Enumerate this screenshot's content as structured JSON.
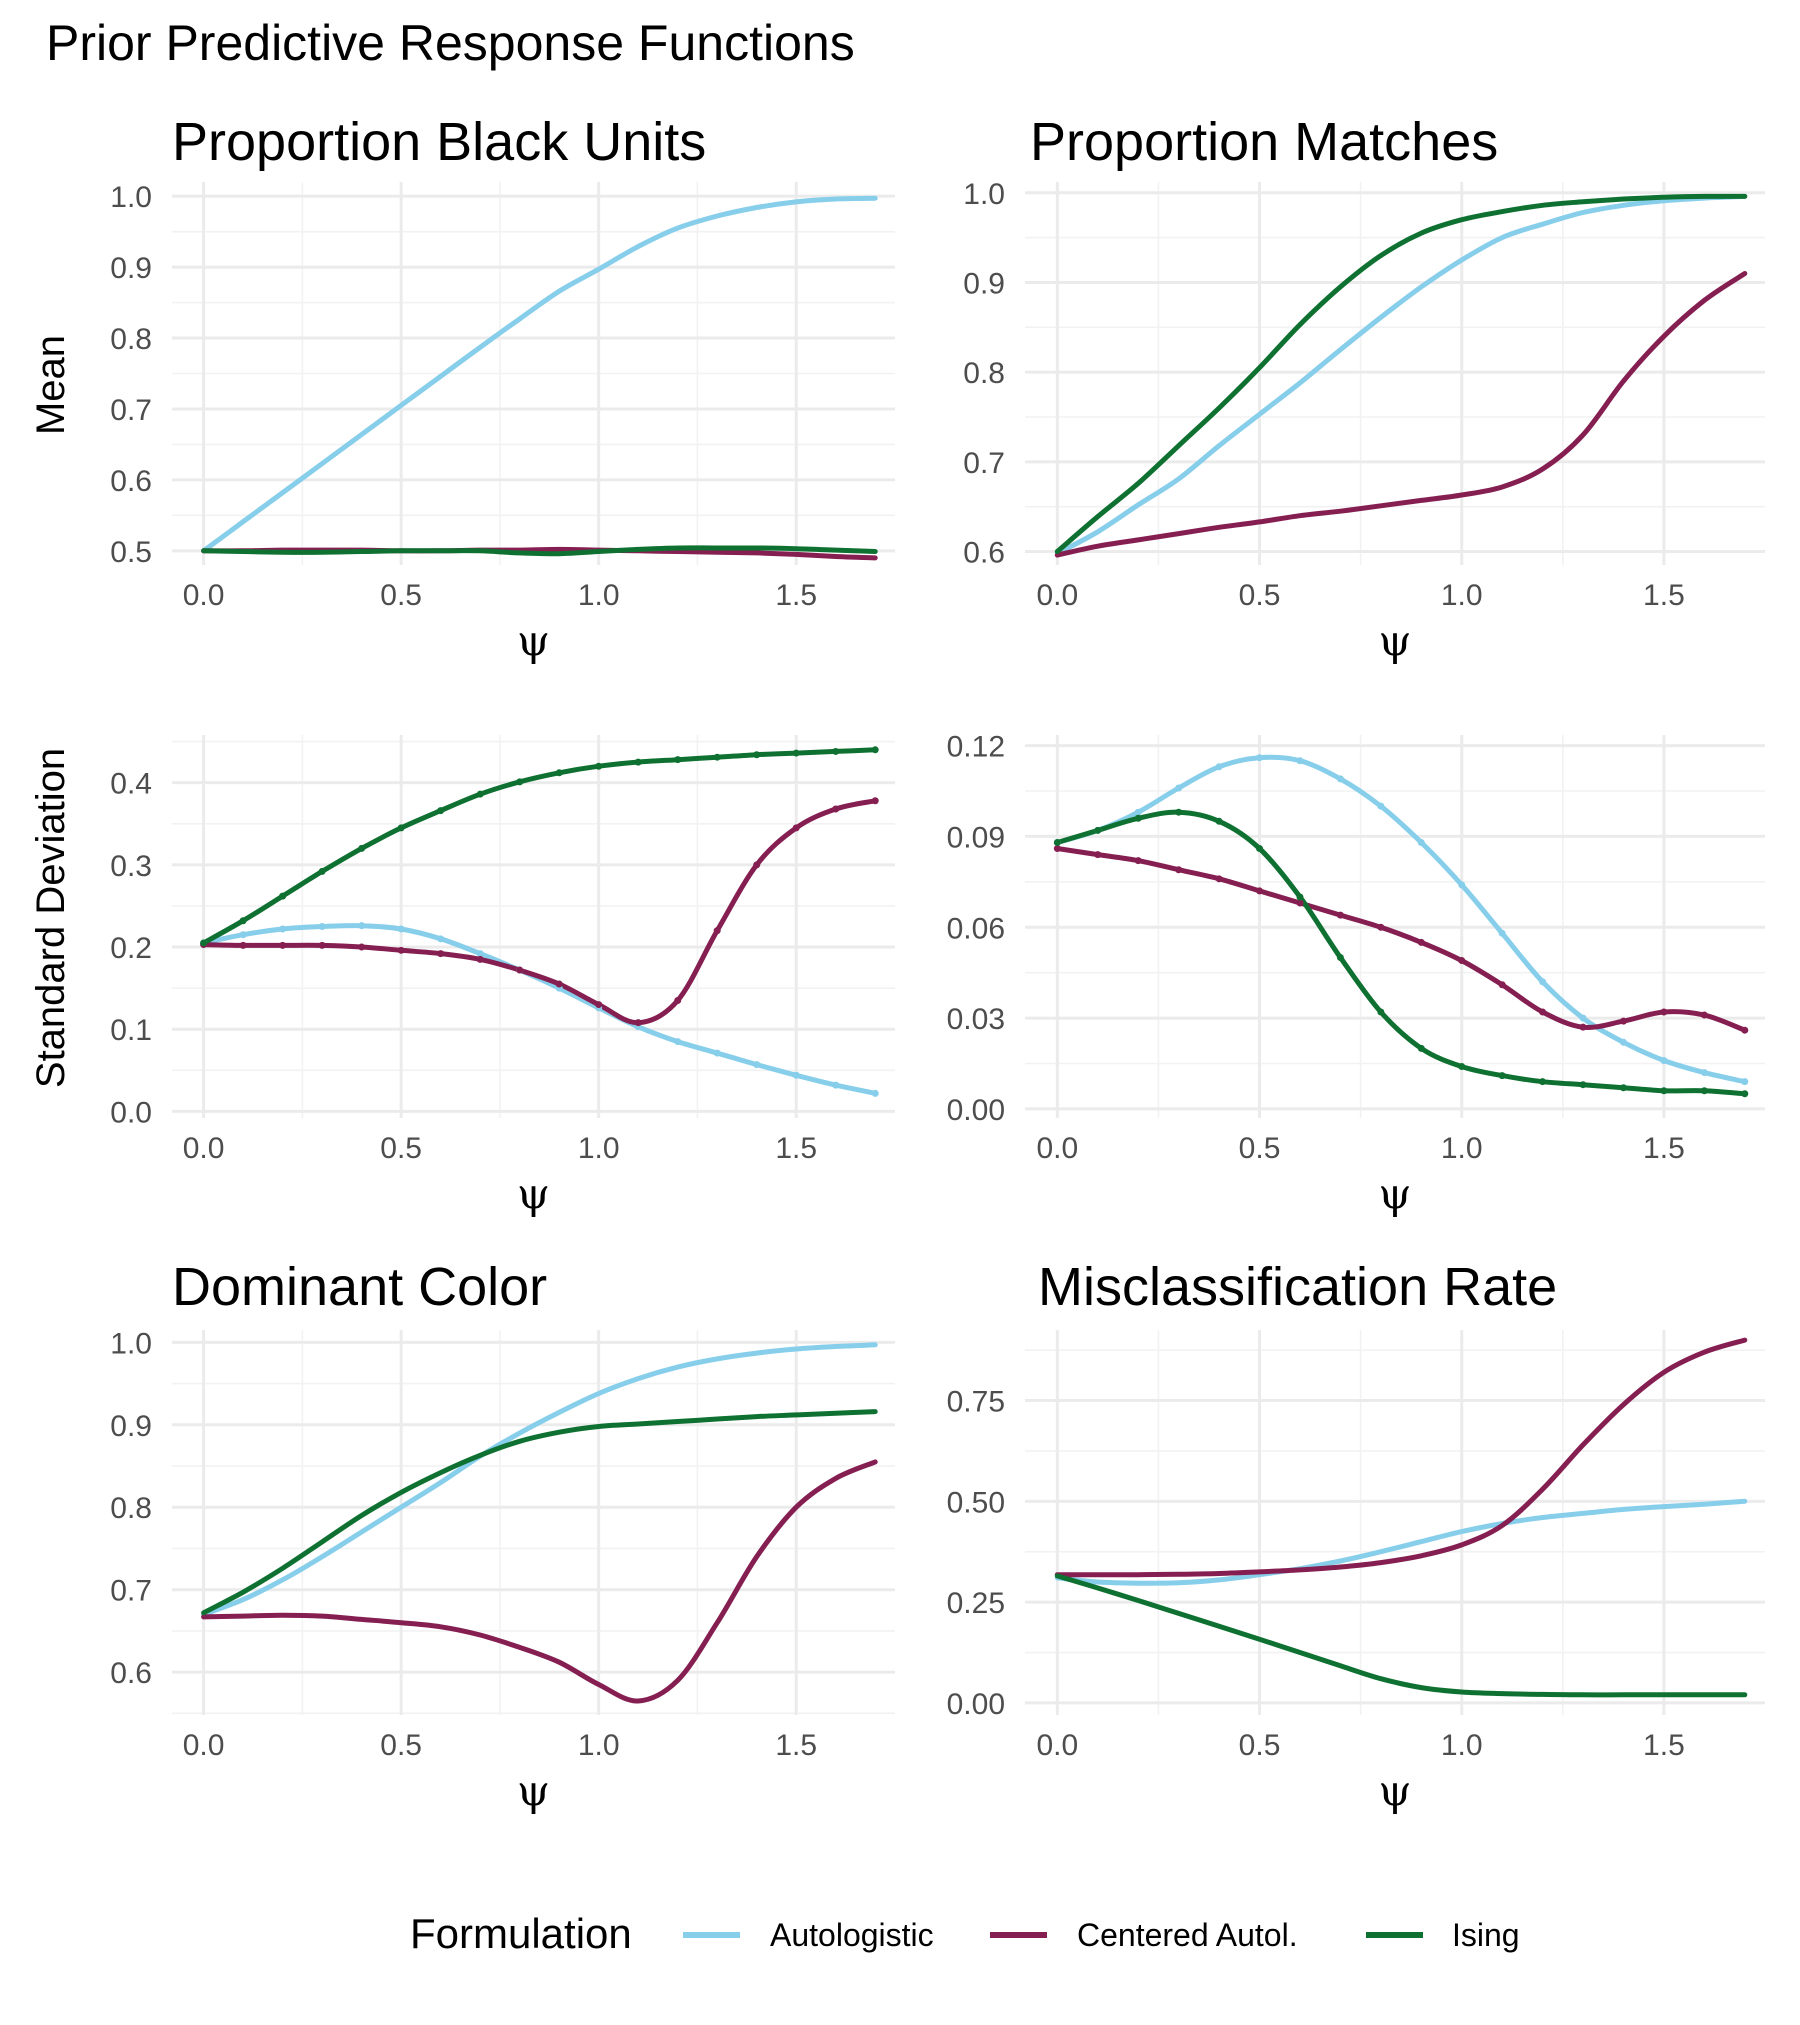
{
  "title": "Prior Predictive Response Functions",
  "colors": {
    "Autologistic": "#87CEEB",
    "Centered Autol.": "#861F51",
    "Ising": "#0F7131"
  },
  "legend": {
    "title": "Formulation",
    "items": [
      "Autologistic",
      "Centered Autol.",
      "Ising"
    ]
  },
  "chart_data": [
    {
      "type": "line",
      "title": "Proportion Black Units",
      "xlabel": "ψ",
      "ylabel": "Mean",
      "xlim": [
        0,
        1.7
      ],
      "ylim": [
        0.5,
        1.0
      ],
      "xticks": [
        0,
        0.5,
        1,
        1.5
      ],
      "xtick_labels": [
        "0.0",
        "0.5",
        "1.0",
        "1.5"
      ],
      "yticks": [
        0.5,
        0.6,
        0.7,
        0.8,
        0.9,
        1.0
      ],
      "ytick_labels": [
        "0.5",
        "0.6",
        "0.7",
        "0.8",
        "0.9",
        "1.0"
      ],
      "x": [
        0,
        0.1,
        0.2,
        0.3,
        0.4,
        0.5,
        0.6,
        0.7,
        0.8,
        0.9,
        1.0,
        1.1,
        1.2,
        1.3,
        1.4,
        1.5,
        1.6,
        1.7
      ],
      "series": [
        {
          "name": "Autologistic",
          "values": [
            0.5,
            0.541,
            0.582,
            0.623,
            0.664,
            0.705,
            0.746,
            0.787,
            0.827,
            0.866,
            0.897,
            0.929,
            0.955,
            0.972,
            0.984,
            0.992,
            0.996,
            0.997
          ]
        },
        {
          "name": "Centered Autol.",
          "values": [
            0.5,
            0.5,
            0.501,
            0.501,
            0.501,
            0.5,
            0.5,
            0.501,
            0.501,
            0.502,
            0.501,
            0.5,
            0.499,
            0.498,
            0.497,
            0.495,
            0.492,
            0.49
          ]
        },
        {
          "name": "Ising",
          "values": [
            0.5,
            0.499,
            0.498,
            0.498,
            0.499,
            0.5,
            0.5,
            0.5,
            0.497,
            0.496,
            0.499,
            0.502,
            0.504,
            0.504,
            0.504,
            0.503,
            0.501,
            0.499
          ]
        }
      ]
    },
    {
      "type": "line",
      "title": "Proportion Matches",
      "xlabel": "ψ",
      "ylabel": "",
      "xlim": [
        0,
        1.7
      ],
      "ylim": [
        0.6,
        1.0
      ],
      "xticks": [
        0,
        0.5,
        1,
        1.5
      ],
      "xtick_labels": [
        "0.0",
        "0.5",
        "1.0",
        "1.5"
      ],
      "yticks": [
        0.6,
        0.7,
        0.8,
        0.9,
        1.0
      ],
      "ytick_labels": [
        "0.6",
        "0.7",
        "0.8",
        "0.9",
        "1.0"
      ],
      "x": [
        0,
        0.1,
        0.2,
        0.3,
        0.4,
        0.5,
        0.6,
        0.7,
        0.8,
        0.9,
        1.0,
        1.1,
        1.2,
        1.3,
        1.4,
        1.5,
        1.6,
        1.7
      ],
      "series": [
        {
          "name": "Autologistic",
          "values": [
            0.598,
            0.622,
            0.652,
            0.681,
            0.718,
            0.753,
            0.788,
            0.825,
            0.861,
            0.895,
            0.925,
            0.95,
            0.965,
            0.978,
            0.986,
            0.991,
            0.994,
            0.996
          ]
        },
        {
          "name": "Centered Autol.",
          "values": [
            0.596,
            0.606,
            0.613,
            0.62,
            0.627,
            0.633,
            0.64,
            0.645,
            0.651,
            0.657,
            0.663,
            0.672,
            0.692,
            0.73,
            0.79,
            0.84,
            0.88,
            0.91
          ]
        },
        {
          "name": "Ising",
          "values": [
            0.6,
            0.639,
            0.676,
            0.718,
            0.76,
            0.805,
            0.853,
            0.895,
            0.93,
            0.955,
            0.97,
            0.979,
            0.986,
            0.99,
            0.993,
            0.995,
            0.996,
            0.996
          ]
        }
      ]
    },
    {
      "type": "line",
      "title": "",
      "xlabel": "ψ",
      "ylabel": "Standard Deviation",
      "xlim": [
        0,
        1.7
      ],
      "ylim": [
        0,
        0.45
      ],
      "xticks": [
        0,
        0.5,
        1,
        1.5
      ],
      "xtick_labels": [
        "0.0",
        "0.5",
        "1.0",
        "1.5"
      ],
      "yticks": [
        0,
        0.1,
        0.2,
        0.3,
        0.4
      ],
      "ytick_labels": [
        "0.0",
        "0.1",
        "0.2",
        "0.3",
        "0.4"
      ],
      "x": [
        0,
        0.1,
        0.2,
        0.3,
        0.4,
        0.5,
        0.6,
        0.7,
        0.8,
        0.9,
        1.0,
        1.1,
        1.2,
        1.3,
        1.4,
        1.5,
        1.6,
        1.7
      ],
      "series": [
        {
          "name": "Autologistic",
          "values": [
            0.205,
            0.215,
            0.222,
            0.225,
            0.226,
            0.222,
            0.21,
            0.192,
            0.172,
            0.15,
            0.126,
            0.103,
            0.085,
            0.071,
            0.057,
            0.044,
            0.032,
            0.022
          ]
        },
        {
          "name": "Centered Autol.",
          "values": [
            0.203,
            0.202,
            0.202,
            0.202,
            0.2,
            0.196,
            0.192,
            0.185,
            0.172,
            0.155,
            0.13,
            0.108,
            0.135,
            0.22,
            0.3,
            0.345,
            0.368,
            0.378
          ]
        },
        {
          "name": "Ising",
          "values": [
            0.205,
            0.232,
            0.262,
            0.292,
            0.32,
            0.345,
            0.366,
            0.386,
            0.401,
            0.412,
            0.42,
            0.425,
            0.428,
            0.431,
            0.434,
            0.436,
            0.438,
            0.44
          ]
        }
      ]
    },
    {
      "type": "line",
      "title": "",
      "xlabel": "ψ",
      "ylabel": "",
      "xlim": [
        0,
        1.7
      ],
      "ylim": [
        0,
        0.12
      ],
      "xticks": [
        0,
        0.5,
        1,
        1.5
      ],
      "xtick_labels": [
        "0.0",
        "0.5",
        "1.0",
        "1.5"
      ],
      "yticks": [
        0,
        0.03,
        0.06,
        0.09,
        0.12
      ],
      "ytick_labels": [
        "0.00",
        "0.03",
        "0.06",
        "0.09",
        "0.12"
      ],
      "x": [
        0,
        0.1,
        0.2,
        0.3,
        0.4,
        0.5,
        0.6,
        0.7,
        0.8,
        0.9,
        1.0,
        1.1,
        1.2,
        1.3,
        1.4,
        1.5,
        1.6,
        1.7
      ],
      "series": [
        {
          "name": "Autologistic",
          "values": [
            0.088,
            0.092,
            0.098,
            0.106,
            0.113,
            0.116,
            0.115,
            0.109,
            0.1,
            0.088,
            0.074,
            0.058,
            0.042,
            0.03,
            0.022,
            0.016,
            0.012,
            0.009
          ]
        },
        {
          "name": "Centered Autol.",
          "values": [
            0.086,
            0.084,
            0.082,
            0.079,
            0.076,
            0.072,
            0.068,
            0.064,
            0.06,
            0.055,
            0.049,
            0.041,
            0.032,
            0.027,
            0.029,
            0.032,
            0.031,
            0.026
          ]
        },
        {
          "name": "Ising",
          "values": [
            0.088,
            0.092,
            0.096,
            0.098,
            0.095,
            0.086,
            0.07,
            0.05,
            0.032,
            0.02,
            0.014,
            0.011,
            0.009,
            0.008,
            0.007,
            0.006,
            0.006,
            0.005
          ]
        }
      ]
    },
    {
      "type": "line",
      "title": "Dominant Color",
      "xlabel": "ψ",
      "ylabel": "",
      "xlim": [
        0,
        1.7
      ],
      "ylim": [
        0.55,
        1.0
      ],
      "xticks": [
        0,
        0.5,
        1,
        1.5
      ],
      "xtick_labels": [
        "0.0",
        "0.5",
        "1.0",
        "1.5"
      ],
      "yticks": [
        0.6,
        0.7,
        0.8,
        0.9,
        1.0
      ],
      "ytick_labels": [
        "0.6",
        "0.7",
        "0.8",
        "0.9",
        "1.0"
      ],
      "x": [
        0,
        0.1,
        0.2,
        0.3,
        0.4,
        0.5,
        0.6,
        0.7,
        0.8,
        0.9,
        1.0,
        1.1,
        1.2,
        1.3,
        1.4,
        1.5,
        1.6,
        1.7
      ],
      "series": [
        {
          "name": "Autologistic",
          "values": [
            0.67,
            0.688,
            0.712,
            0.74,
            0.77,
            0.8,
            0.83,
            0.862,
            0.89,
            0.915,
            0.938,
            0.956,
            0.97,
            0.98,
            0.987,
            0.992,
            0.995,
            0.997
          ]
        },
        {
          "name": "Centered Autol.",
          "values": [
            0.667,
            0.668,
            0.669,
            0.668,
            0.664,
            0.66,
            0.655,
            0.645,
            0.63,
            0.612,
            0.585,
            0.565,
            0.59,
            0.66,
            0.74,
            0.8,
            0.835,
            0.855
          ]
        },
        {
          "name": "Ising",
          "values": [
            0.672,
            0.697,
            0.726,
            0.758,
            0.79,
            0.818,
            0.842,
            0.863,
            0.88,
            0.891,
            0.898,
            0.901,
            0.904,
            0.907,
            0.91,
            0.912,
            0.914,
            0.916
          ]
        }
      ]
    },
    {
      "type": "line",
      "title": "Misclassification Rate",
      "xlabel": "ψ",
      "ylabel": "",
      "xlim": [
        0,
        1.7
      ],
      "ylim": [
        0,
        0.9
      ],
      "xticks": [
        0,
        0.5,
        1,
        1.5
      ],
      "xtick_labels": [
        "0.0",
        "0.5",
        "1.0",
        "1.5"
      ],
      "yticks": [
        0,
        0.25,
        0.5,
        0.75
      ],
      "ytick_labels": [
        "0.00",
        "0.25",
        "0.50",
        "0.75"
      ],
      "x": [
        0,
        0.1,
        0.2,
        0.3,
        0.4,
        0.5,
        0.6,
        0.7,
        0.8,
        0.9,
        1.0,
        1.1,
        1.2,
        1.3,
        1.4,
        1.5,
        1.6,
        1.7
      ],
      "series": [
        {
          "name": "Autologistic",
          "values": [
            0.31,
            0.3,
            0.297,
            0.298,
            0.305,
            0.318,
            0.333,
            0.352,
            0.375,
            0.4,
            0.425,
            0.445,
            0.46,
            0.47,
            0.48,
            0.487,
            0.493,
            0.5
          ]
        },
        {
          "name": "Centered Autol.",
          "values": [
            0.318,
            0.318,
            0.318,
            0.319,
            0.321,
            0.325,
            0.33,
            0.337,
            0.348,
            0.365,
            0.392,
            0.44,
            0.53,
            0.64,
            0.74,
            0.82,
            0.87,
            0.9
          ]
        },
        {
          "name": "Ising",
          "values": [
            0.315,
            0.285,
            0.254,
            0.222,
            0.19,
            0.158,
            0.125,
            0.092,
            0.06,
            0.038,
            0.027,
            0.023,
            0.021,
            0.02,
            0.02,
            0.02,
            0.02,
            0.02
          ]
        }
      ]
    }
  ]
}
